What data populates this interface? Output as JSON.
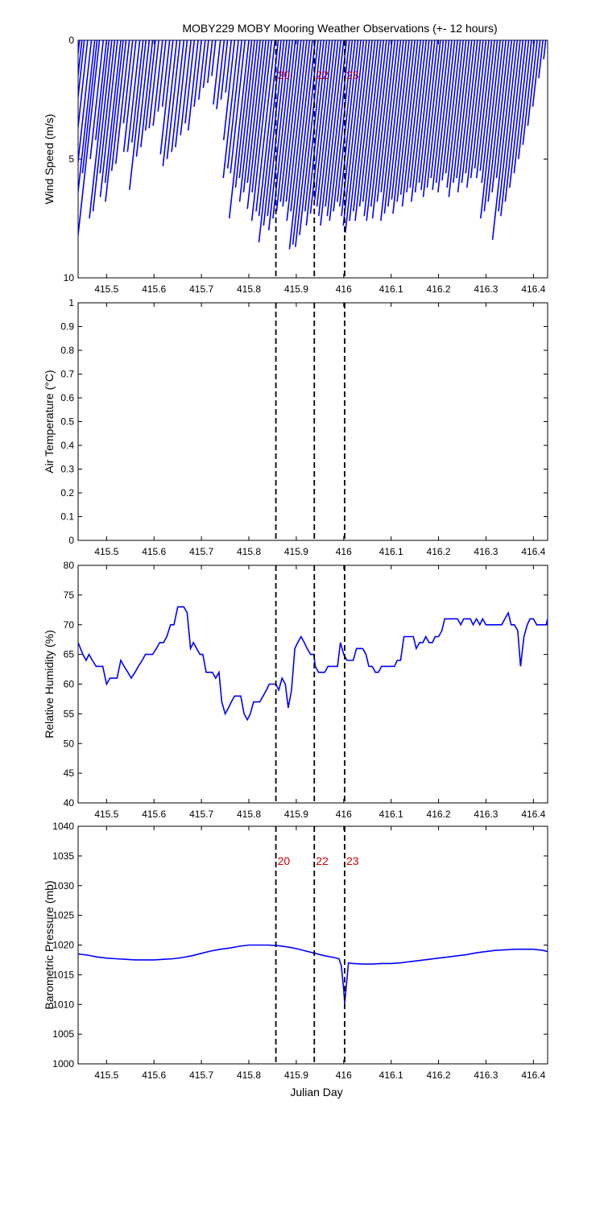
{
  "figure_title": "MOBY229 MOBY Mooring Weather Observations (+- 12 hours)",
  "x_axis_label": "Julian Day",
  "colors": {
    "series": "#0000ff",
    "marker_text": "#cc0000",
    "axes": "#000000"
  },
  "chart_data": [
    {
      "type": "line",
      "subtype": "wind-stick",
      "ylabel": "Wind Speed (m/s)",
      "ylim": [
        0,
        10
      ],
      "y_reversed": true,
      "xlim": [
        415.44,
        416.43
      ],
      "x_ticks": [
        "415.5",
        "415.6",
        "415.7",
        "415.8",
        "415.9",
        "416",
        "416.1",
        "416.2",
        "416.3",
        "416.4"
      ],
      "y_ticks": [
        "0",
        "5",
        "10"
      ],
      "markers": [
        {
          "x": 415.857,
          "label": "20"
        },
        {
          "x": 415.938,
          "label": "22"
        },
        {
          "x": 416.002,
          "label": "23"
        }
      ],
      "stick_x_offset": 0.055,
      "sticks": [
        {
          "x": 415.443,
          "speed": 3.2
        },
        {
          "x": 415.448,
          "speed": 4.8
        },
        {
          "x": 415.453,
          "speed": 5.4
        },
        {
          "x": 415.46,
          "speed": 4.6
        },
        {
          "x": 415.468,
          "speed": 7.0
        },
        {
          "x": 415.475,
          "speed": 8.5
        },
        {
          "x": 415.48,
          "speed": 5.6
        },
        {
          "x": 415.485,
          "speed": 9.0
        },
        {
          "x": 415.493,
          "speed": 5.0
        },
        {
          "x": 415.5,
          "speed": 4.2
        },
        {
          "x": 415.505,
          "speed": 7.5
        },
        {
          "x": 415.511,
          "speed": 7.2
        },
        {
          "x": 415.517,
          "speed": 5.6
        },
        {
          "x": 415.523,
          "speed": 6.6
        },
        {
          "x": 415.53,
          "speed": 6.0
        },
        {
          "x": 415.535,
          "speed": 6.8
        },
        {
          "x": 415.541,
          "speed": 5.5
        },
        {
          "x": 415.548,
          "speed": 5.2
        },
        {
          "x": 415.555,
          "speed": 3.5
        },
        {
          "x": 415.562,
          "speed": 4.7
        },
        {
          "x": 415.57,
          "speed": 4.7
        },
        {
          "x": 415.577,
          "speed": 4.3
        },
        {
          "x": 415.583,
          "speed": 6.3
        },
        {
          "x": 415.59,
          "speed": 4.9
        },
        {
          "x": 415.597,
          "speed": 4.5
        },
        {
          "x": 415.603,
          "speed": 3.8
        },
        {
          "x": 415.61,
          "speed": 3.7
        },
        {
          "x": 415.618,
          "speed": 3.6
        },
        {
          "x": 415.625,
          "speed": 3.0
        },
        {
          "x": 415.633,
          "speed": 2.8
        },
        {
          "x": 415.64,
          "speed": 4.8
        },
        {
          "x": 415.648,
          "speed": 5.3
        },
        {
          "x": 415.655,
          "speed": 5.0
        },
        {
          "x": 415.663,
          "speed": 4.7
        },
        {
          "x": 415.67,
          "speed": 4.5
        },
        {
          "x": 415.678,
          "speed": 4.0
        },
        {
          "x": 415.685,
          "speed": 3.5
        },
        {
          "x": 415.693,
          "speed": 3.8
        },
        {
          "x": 415.7,
          "speed": 2.8
        },
        {
          "x": 415.708,
          "speed": 2.5
        },
        {
          "x": 415.715,
          "speed": 2.0
        },
        {
          "x": 415.723,
          "speed": 1.8
        },
        {
          "x": 415.73,
          "speed": 1.5
        },
        {
          "x": 415.74,
          "speed": 2.7
        },
        {
          "x": 415.748,
          "speed": 2.9
        },
        {
          "x": 415.755,
          "speed": 2.5
        },
        {
          "x": 415.763,
          "speed": 2.2
        },
        {
          "x": 415.77,
          "speed": 4.2
        },
        {
          "x": 415.778,
          "speed": 5.8
        },
        {
          "x": 415.785,
          "speed": 5.4
        },
        {
          "x": 415.792,
          "speed": 5.6
        },
        {
          "x": 415.8,
          "speed": 7.5
        },
        {
          "x": 415.806,
          "speed": 6.2
        },
        {
          "x": 415.812,
          "speed": 5.8
        },
        {
          "x": 415.818,
          "speed": 6.8
        },
        {
          "x": 415.824,
          "speed": 6.4
        },
        {
          "x": 415.83,
          "speed": 6.0
        },
        {
          "x": 415.836,
          "speed": 7.1
        },
        {
          "x": 415.842,
          "speed": 6.4
        },
        {
          "x": 415.848,
          "speed": 7.6
        },
        {
          "x": 415.855,
          "speed": 7.2
        },
        {
          "x": 415.862,
          "speed": 7.4
        },
        {
          "x": 415.868,
          "speed": 8.5
        },
        {
          "x": 415.874,
          "speed": 7.8
        },
        {
          "x": 415.88,
          "speed": 7.4
        },
        {
          "x": 415.886,
          "speed": 8.0
        },
        {
          "x": 415.892,
          "speed": 7.5
        },
        {
          "x": 415.898,
          "speed": 7.2
        },
        {
          "x": 415.904,
          "speed": 6.8
        },
        {
          "x": 415.91,
          "speed": 7.0
        },
        {
          "x": 415.916,
          "speed": 6.8
        },
        {
          "x": 415.922,
          "speed": 7.6
        },
        {
          "x": 415.928,
          "speed": 7.2
        },
        {
          "x": 415.934,
          "speed": 8.8
        },
        {
          "x": 415.94,
          "speed": 8.6
        },
        {
          "x": 415.946,
          "speed": 8.7
        },
        {
          "x": 415.952,
          "speed": 8.2
        },
        {
          "x": 415.958,
          "speed": 7.2
        },
        {
          "x": 415.964,
          "speed": 7.8
        },
        {
          "x": 415.97,
          "speed": 7.3
        },
        {
          "x": 415.976,
          "speed": 6.7
        },
        {
          "x": 415.982,
          "speed": 7.0
        },
        {
          "x": 415.988,
          "speed": 7.4
        },
        {
          "x": 415.994,
          "speed": 7.8
        },
        {
          "x": 416.0,
          "speed": 7.0
        },
        {
          "x": 416.006,
          "speed": 7.4
        },
        {
          "x": 416.012,
          "speed": 7.6
        },
        {
          "x": 416.018,
          "speed": 7.2
        },
        {
          "x": 416.024,
          "speed": 6.8
        },
        {
          "x": 416.03,
          "speed": 7.0
        },
        {
          "x": 416.036,
          "speed": 7.4
        },
        {
          "x": 416.042,
          "speed": 7.8
        },
        {
          "x": 416.048,
          "speed": 8.1
        },
        {
          "x": 416.054,
          "speed": 7.6
        },
        {
          "x": 416.06,
          "speed": 7.2
        },
        {
          "x": 416.066,
          "speed": 7.6
        },
        {
          "x": 416.072,
          "speed": 7.0
        },
        {
          "x": 416.078,
          "speed": 6.8
        },
        {
          "x": 416.084,
          "speed": 7.4
        },
        {
          "x": 416.09,
          "speed": 7.6
        },
        {
          "x": 416.096,
          "speed": 7.0
        },
        {
          "x": 416.102,
          "speed": 7.5
        },
        {
          "x": 416.108,
          "speed": 6.8
        },
        {
          "x": 416.114,
          "speed": 6.4
        },
        {
          "x": 416.12,
          "speed": 7.6
        },
        {
          "x": 416.126,
          "speed": 7.3
        },
        {
          "x": 416.132,
          "speed": 7.0
        },
        {
          "x": 416.138,
          "speed": 6.7
        },
        {
          "x": 416.144,
          "speed": 7.3
        },
        {
          "x": 416.15,
          "speed": 6.8
        },
        {
          "x": 416.156,
          "speed": 6.5
        },
        {
          "x": 416.162,
          "speed": 7.0
        },
        {
          "x": 416.168,
          "speed": 6.4
        },
        {
          "x": 416.174,
          "speed": 6.2
        },
        {
          "x": 416.18,
          "speed": 6.8
        },
        {
          "x": 416.186,
          "speed": 6.4
        },
        {
          "x": 416.192,
          "speed": 6.0
        },
        {
          "x": 416.198,
          "speed": 6.3
        },
        {
          "x": 416.204,
          "speed": 6.6
        },
        {
          "x": 416.21,
          "speed": 6.2
        },
        {
          "x": 416.216,
          "speed": 5.8
        },
        {
          "x": 416.222,
          "speed": 6.3
        },
        {
          "x": 416.228,
          "speed": 6.0
        },
        {
          "x": 416.234,
          "speed": 6.4
        },
        {
          "x": 416.24,
          "speed": 5.9
        },
        {
          "x": 416.246,
          "speed": 5.6
        },
        {
          "x": 416.252,
          "speed": 6.2
        },
        {
          "x": 416.258,
          "speed": 6.6
        },
        {
          "x": 416.264,
          "speed": 6.0
        },
        {
          "x": 416.27,
          "speed": 5.8
        },
        {
          "x": 416.276,
          "speed": 6.4
        },
        {
          "x": 416.282,
          "speed": 6.0
        },
        {
          "x": 416.288,
          "speed": 5.6
        },
        {
          "x": 416.294,
          "speed": 6.2
        },
        {
          "x": 416.3,
          "speed": 5.8
        },
        {
          "x": 416.306,
          "speed": 5.4
        },
        {
          "x": 416.312,
          "speed": 5.8
        },
        {
          "x": 416.318,
          "speed": 5.5
        },
        {
          "x": 416.324,
          "speed": 6.0
        },
        {
          "x": 416.33,
          "speed": 7.5
        },
        {
          "x": 416.336,
          "speed": 7.2
        },
        {
          "x": 416.342,
          "speed": 6.8
        },
        {
          "x": 416.348,
          "speed": 6.4
        },
        {
          "x": 416.354,
          "speed": 5.8
        },
        {
          "x": 416.36,
          "speed": 8.4
        },
        {
          "x": 416.366,
          "speed": 7.2
        },
        {
          "x": 416.372,
          "speed": 7.4
        },
        {
          "x": 416.378,
          "speed": 6.8
        },
        {
          "x": 416.384,
          "speed": 6.2
        },
        {
          "x": 416.39,
          "speed": 5.6
        },
        {
          "x": 416.396,
          "speed": 5.0
        },
        {
          "x": 416.402,
          "speed": 4.4
        },
        {
          "x": 416.408,
          "speed": 3.6
        },
        {
          "x": 416.414,
          "speed": 2.8
        },
        {
          "x": 416.42,
          "speed": 1.6
        },
        {
          "x": 416.426,
          "speed": 0.8
        }
      ]
    },
    {
      "type": "line",
      "ylabel": "Air Temperature (°C)",
      "ylim": [
        0,
        1
      ],
      "xlim": [
        415.44,
        416.43
      ],
      "x_ticks": [
        "415.5",
        "415.6",
        "415.7",
        "415.8",
        "415.9",
        "416",
        "416.1",
        "416.2",
        "416.3",
        "416.4"
      ],
      "y_ticks": [
        "0",
        "0.1",
        "0.2",
        "0.3",
        "0.4",
        "0.5",
        "0.6",
        "0.7",
        "0.8",
        "0.9",
        "1"
      ],
      "markers": [
        {
          "x": 415.857
        },
        {
          "x": 415.938
        },
        {
          "x": 416.002
        }
      ],
      "x": [],
      "y": []
    },
    {
      "type": "line",
      "ylabel": "Relative Humidity (%)",
      "ylim": [
        40,
        80
      ],
      "xlim": [
        415.44,
        416.43
      ],
      "x_ticks": [
        "415.5",
        "415.6",
        "415.7",
        "415.8",
        "415.9",
        "416",
        "416.1",
        "416.2",
        "416.3",
        "416.4"
      ],
      "y_ticks": [
        "40",
        "45",
        "50",
        "55",
        "60",
        "65",
        "70",
        "75",
        "80"
      ],
      "markers": [
        {
          "x": 415.857
        },
        {
          "x": 415.938
        },
        {
          "x": 416.002
        }
      ],
      "x": [
        415.44,
        415.45,
        415.457,
        415.463,
        415.47,
        415.478,
        415.485,
        415.492,
        415.5,
        415.507,
        415.515,
        415.522,
        415.53,
        415.537,
        415.545,
        415.552,
        415.56,
        415.567,
        415.575,
        415.582,
        415.59,
        415.597,
        415.605,
        415.612,
        415.62,
        415.627,
        415.635,
        415.642,
        415.65,
        415.657,
        415.663,
        415.67,
        415.677,
        415.683,
        415.69,
        415.697,
        415.703,
        415.71,
        415.717,
        415.723,
        415.73,
        415.737,
        415.743,
        415.75,
        415.757,
        415.763,
        415.77,
        415.777,
        415.783,
        415.79,
        415.797,
        415.803,
        415.81,
        415.817,
        415.823,
        415.83,
        415.837,
        415.843,
        415.85,
        415.857,
        415.863,
        415.87,
        415.877,
        415.883,
        415.89,
        415.897,
        415.903,
        415.91,
        415.917,
        415.923,
        415.93,
        415.937,
        415.94,
        415.947,
        415.953,
        415.96,
        415.967,
        415.973,
        415.98,
        415.987,
        415.993,
        416.0,
        416.007,
        416.013,
        416.02,
        416.027,
        416.033,
        416.04,
        416.047,
        416.053,
        416.06,
        416.067,
        416.073,
        416.08,
        416.087,
        416.093,
        416.1,
        416.107,
        416.113,
        416.12,
        416.127,
        416.133,
        416.14,
        416.147,
        416.153,
        416.16,
        416.167,
        416.173,
        416.18,
        416.187,
        416.193,
        416.2,
        416.207,
        416.213,
        416.22,
        416.227,
        416.233,
        416.24,
        416.247,
        416.253,
        416.26,
        416.267,
        416.273,
        416.28,
        416.287,
        416.293,
        416.3,
        416.307,
        416.313,
        416.32,
        416.327,
        416.333,
        416.34,
        416.347,
        416.353,
        416.36,
        416.367,
        416.373,
        416.38,
        416.387,
        416.393,
        416.4,
        416.407,
        416.413,
        416.42,
        416.427,
        416.43
      ],
      "y": [
        67,
        65,
        64,
        65,
        64,
        63,
        63,
        63,
        60,
        61,
        61,
        61,
        64,
        63,
        62,
        61,
        62,
        63,
        64,
        65,
        65,
        65,
        66,
        67,
        67,
        68,
        70,
        70,
        73,
        73,
        73,
        72,
        66,
        67,
        66,
        65,
        65,
        62,
        62,
        62,
        61,
        62,
        57,
        55,
        56,
        57,
        58,
        58,
        58,
        55,
        54,
        55,
        57,
        57,
        57,
        58,
        59,
        60,
        60,
        60,
        59,
        61,
        60,
        56,
        59,
        66,
        67,
        68,
        67,
        66,
        65,
        65,
        63,
        62,
        62,
        62,
        63,
        63,
        63,
        63,
        67,
        65,
        64,
        64,
        64,
        66,
        66,
        66,
        65,
        63,
        63,
        62,
        62,
        63,
        63,
        63,
        63,
        63,
        64,
        64,
        68,
        68,
        68,
        68,
        66,
        67,
        67,
        68,
        67,
        67,
        68,
        68,
        69,
        71,
        71,
        71,
        71,
        71,
        70,
        71,
        71,
        71,
        70,
        71,
        70,
        71,
        70,
        70,
        70,
        70,
        70,
        70,
        71,
        72,
        70,
        70,
        69,
        63,
        68,
        70,
        71,
        71,
        70,
        70,
        70,
        70,
        71
      ],
      "series_name": ""
    },
    {
      "type": "line",
      "ylabel": "Barometric Pressure (mb)",
      "ylim": [
        1000,
        1040
      ],
      "xlim": [
        415.44,
        416.43
      ],
      "x_ticks": [
        "415.5",
        "415.6",
        "415.7",
        "415.8",
        "415.9",
        "416",
        "416.1",
        "416.2",
        "416.3",
        "416.4"
      ],
      "y_ticks": [
        "1000",
        "1005",
        "1010",
        "1015",
        "1020",
        "1025",
        "1030",
        "1035",
        "1040"
      ],
      "markers": [
        {
          "x": 415.857,
          "label": "20"
        },
        {
          "x": 415.938,
          "label": "22"
        },
        {
          "x": 416.002,
          "label": "23"
        }
      ],
      "x": [
        415.44,
        415.46,
        415.48,
        415.5,
        415.52,
        415.54,
        415.56,
        415.58,
        415.6,
        415.62,
        415.64,
        415.66,
        415.68,
        415.7,
        415.72,
        415.74,
        415.76,
        415.78,
        415.8,
        415.82,
        415.84,
        415.86,
        415.88,
        415.9,
        415.92,
        415.94,
        415.96,
        415.98,
        415.99,
        415.995,
        416.0,
        416.002,
        416.006,
        416.01,
        416.02,
        416.04,
        416.06,
        416.08,
        416.1,
        416.12,
        416.14,
        416.16,
        416.18,
        416.2,
        416.22,
        416.24,
        416.26,
        416.28,
        416.3,
        416.32,
        416.34,
        416.36,
        416.38,
        416.4,
        416.42,
        416.43
      ],
      "y": [
        1018.5,
        1018.3,
        1018.0,
        1017.8,
        1017.7,
        1017.6,
        1017.5,
        1017.5,
        1017.5,
        1017.6,
        1017.7,
        1017.9,
        1018.2,
        1018.6,
        1019.0,
        1019.3,
        1019.5,
        1019.8,
        1020.0,
        1020.0,
        1020.0,
        1019.9,
        1019.7,
        1019.4,
        1019.0,
        1018.6,
        1018.2,
        1017.9,
        1017.7,
        1016.5,
        1012.5,
        1010.2,
        1013.5,
        1017.0,
        1016.9,
        1016.8,
        1016.8,
        1016.9,
        1016.9,
        1017.0,
        1017.2,
        1017.4,
        1017.6,
        1017.8,
        1018.0,
        1018.2,
        1018.4,
        1018.7,
        1018.9,
        1019.1,
        1019.2,
        1019.3,
        1019.3,
        1019.3,
        1019.1,
        1018.9
      ],
      "series_name": ""
    }
  ]
}
